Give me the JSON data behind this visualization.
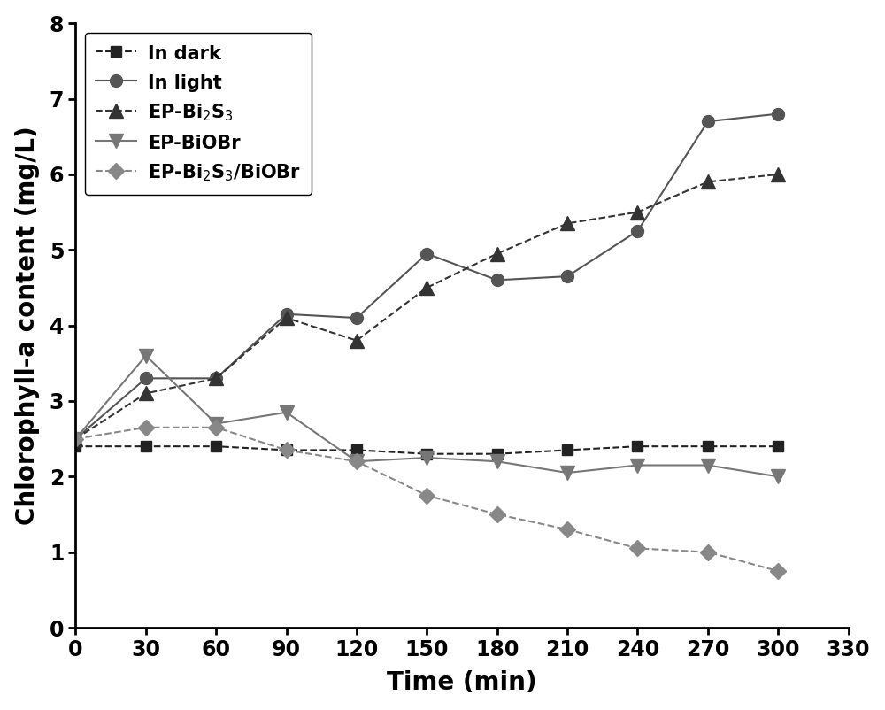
{
  "time": [
    0,
    30,
    60,
    90,
    120,
    150,
    180,
    210,
    240,
    270,
    300
  ],
  "in_dark": [
    2.4,
    2.4,
    2.4,
    2.35,
    2.35,
    2.3,
    2.3,
    2.35,
    2.4,
    2.4,
    2.4
  ],
  "in_light": [
    2.5,
    3.3,
    3.3,
    4.15,
    4.1,
    4.95,
    4.6,
    4.65,
    5.25,
    6.7,
    6.8
  ],
  "ep_bi2s3": [
    2.5,
    3.1,
    3.3,
    4.1,
    3.8,
    4.5,
    4.95,
    5.35,
    5.5,
    5.9,
    6.0
  ],
  "ep_biobr": [
    2.5,
    3.6,
    2.7,
    2.85,
    2.2,
    2.25,
    2.2,
    2.05,
    2.15,
    2.15,
    2.0
  ],
  "ep_bi2s3_biobr": [
    2.5,
    2.65,
    2.65,
    2.35,
    2.2,
    1.75,
    1.5,
    1.3,
    1.05,
    1.0,
    0.75
  ],
  "xlabel": "Time (min)",
  "ylabel": "Chlorophyll-a content (mg/L)",
  "xlim": [
    0,
    330
  ],
  "ylim": [
    0,
    8
  ],
  "xticks": [
    0,
    30,
    60,
    90,
    120,
    150,
    180,
    210,
    240,
    270,
    300,
    330
  ],
  "yticks": [
    0,
    1,
    2,
    3,
    4,
    5,
    6,
    7,
    8
  ],
  "legend_labels": [
    "In dark",
    "In light",
    "EP-Bi$_2$S$_3$",
    "EP-BiOBr",
    "EP-Bi$_2$S$_3$/BiOBr"
  ],
  "color_dark": "#222222",
  "color_light": "#555555",
  "color_bi2s3": "#333333",
  "color_biobr": "#777777",
  "color_bi2s3_biobr": "#888888",
  "label_fontsize": 20,
  "tick_fontsize": 17,
  "legend_fontsize": 15,
  "linewidth": 1.5,
  "bg_color": "#ffffff"
}
